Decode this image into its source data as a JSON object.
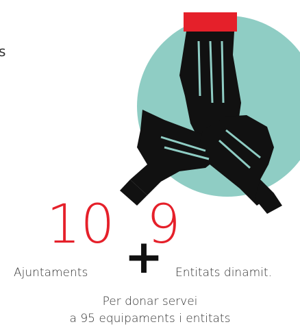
{
  "fragment": "s",
  "left": {
    "number": 10,
    "label": "Ajuntaments"
  },
  "plus": "+",
  "right": {
    "number": 9,
    "label": "Entitats dinamit."
  },
  "footer": [
    "Per donar servei",
    "a 95 equipaments i entitats"
  ]
}
